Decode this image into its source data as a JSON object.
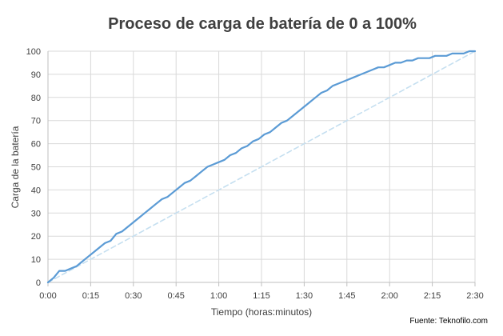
{
  "chart_data": {
    "type": "line",
    "title": "Proceso de carga de batería de 0 a 100%",
    "xlabel": "Tiempo (horas:minutos)",
    "ylabel": "Carga de la batería",
    "source": "Fuente: Teknofilo.com",
    "x_unit": "minutes",
    "xlim": [
      0,
      150
    ],
    "ylim": [
      0,
      100
    ],
    "x_ticks": [
      0,
      15,
      30,
      45,
      60,
      75,
      90,
      105,
      120,
      135,
      150
    ],
    "x_tick_labels": [
      "0:00",
      "0:15",
      "0:30",
      "0:45",
      "1:00",
      "1:15",
      "1:30",
      "1:45",
      "2:00",
      "2:15",
      "2:30"
    ],
    "y_ticks": [
      0,
      10,
      20,
      30,
      40,
      50,
      60,
      70,
      80,
      90,
      100
    ],
    "y_tick_labels": [
      "0",
      "10",
      "20",
      "30",
      "40",
      "50",
      "60",
      "70",
      "80",
      "90",
      "100"
    ],
    "grid": true,
    "legend": "none",
    "series": [
      {
        "style": "solid",
        "color": "#5b9bd5",
        "x": [
          0,
          2,
          4,
          6,
          8,
          10,
          12,
          14,
          16,
          18,
          20,
          22,
          24,
          26,
          28,
          30,
          32,
          34,
          36,
          38,
          40,
          42,
          44,
          46,
          48,
          50,
          52,
          54,
          56,
          58,
          60,
          62,
          64,
          66,
          68,
          70,
          72,
          74,
          76,
          78,
          80,
          82,
          84,
          86,
          88,
          90,
          92,
          94,
          96,
          98,
          100,
          102,
          104,
          106,
          108,
          110,
          112,
          114,
          116,
          118,
          120,
          122,
          124,
          126,
          128,
          130,
          132,
          134,
          136,
          138,
          140,
          142,
          144,
          146,
          148,
          150
        ],
        "y": [
          0,
          2,
          5,
          5,
          6,
          7,
          9,
          11,
          13,
          15,
          17,
          18,
          21,
          22,
          24,
          26,
          28,
          30,
          32,
          34,
          36,
          37,
          39,
          41,
          43,
          44,
          46,
          48,
          50,
          51,
          52,
          53,
          55,
          56,
          58,
          59,
          61,
          62,
          64,
          65,
          67,
          69,
          70,
          72,
          74,
          76,
          78,
          80,
          82,
          83,
          85,
          86,
          87,
          88,
          89,
          90,
          91,
          92,
          93,
          93,
          94,
          95,
          95,
          96,
          96,
          97,
          97,
          97,
          98,
          98,
          98,
          99,
          99,
          99,
          100,
          100
        ]
      },
      {
        "style": "dashed",
        "color": "#c5dff0",
        "x": [
          0,
          150
        ],
        "y": [
          0,
          100
        ]
      }
    ]
  }
}
